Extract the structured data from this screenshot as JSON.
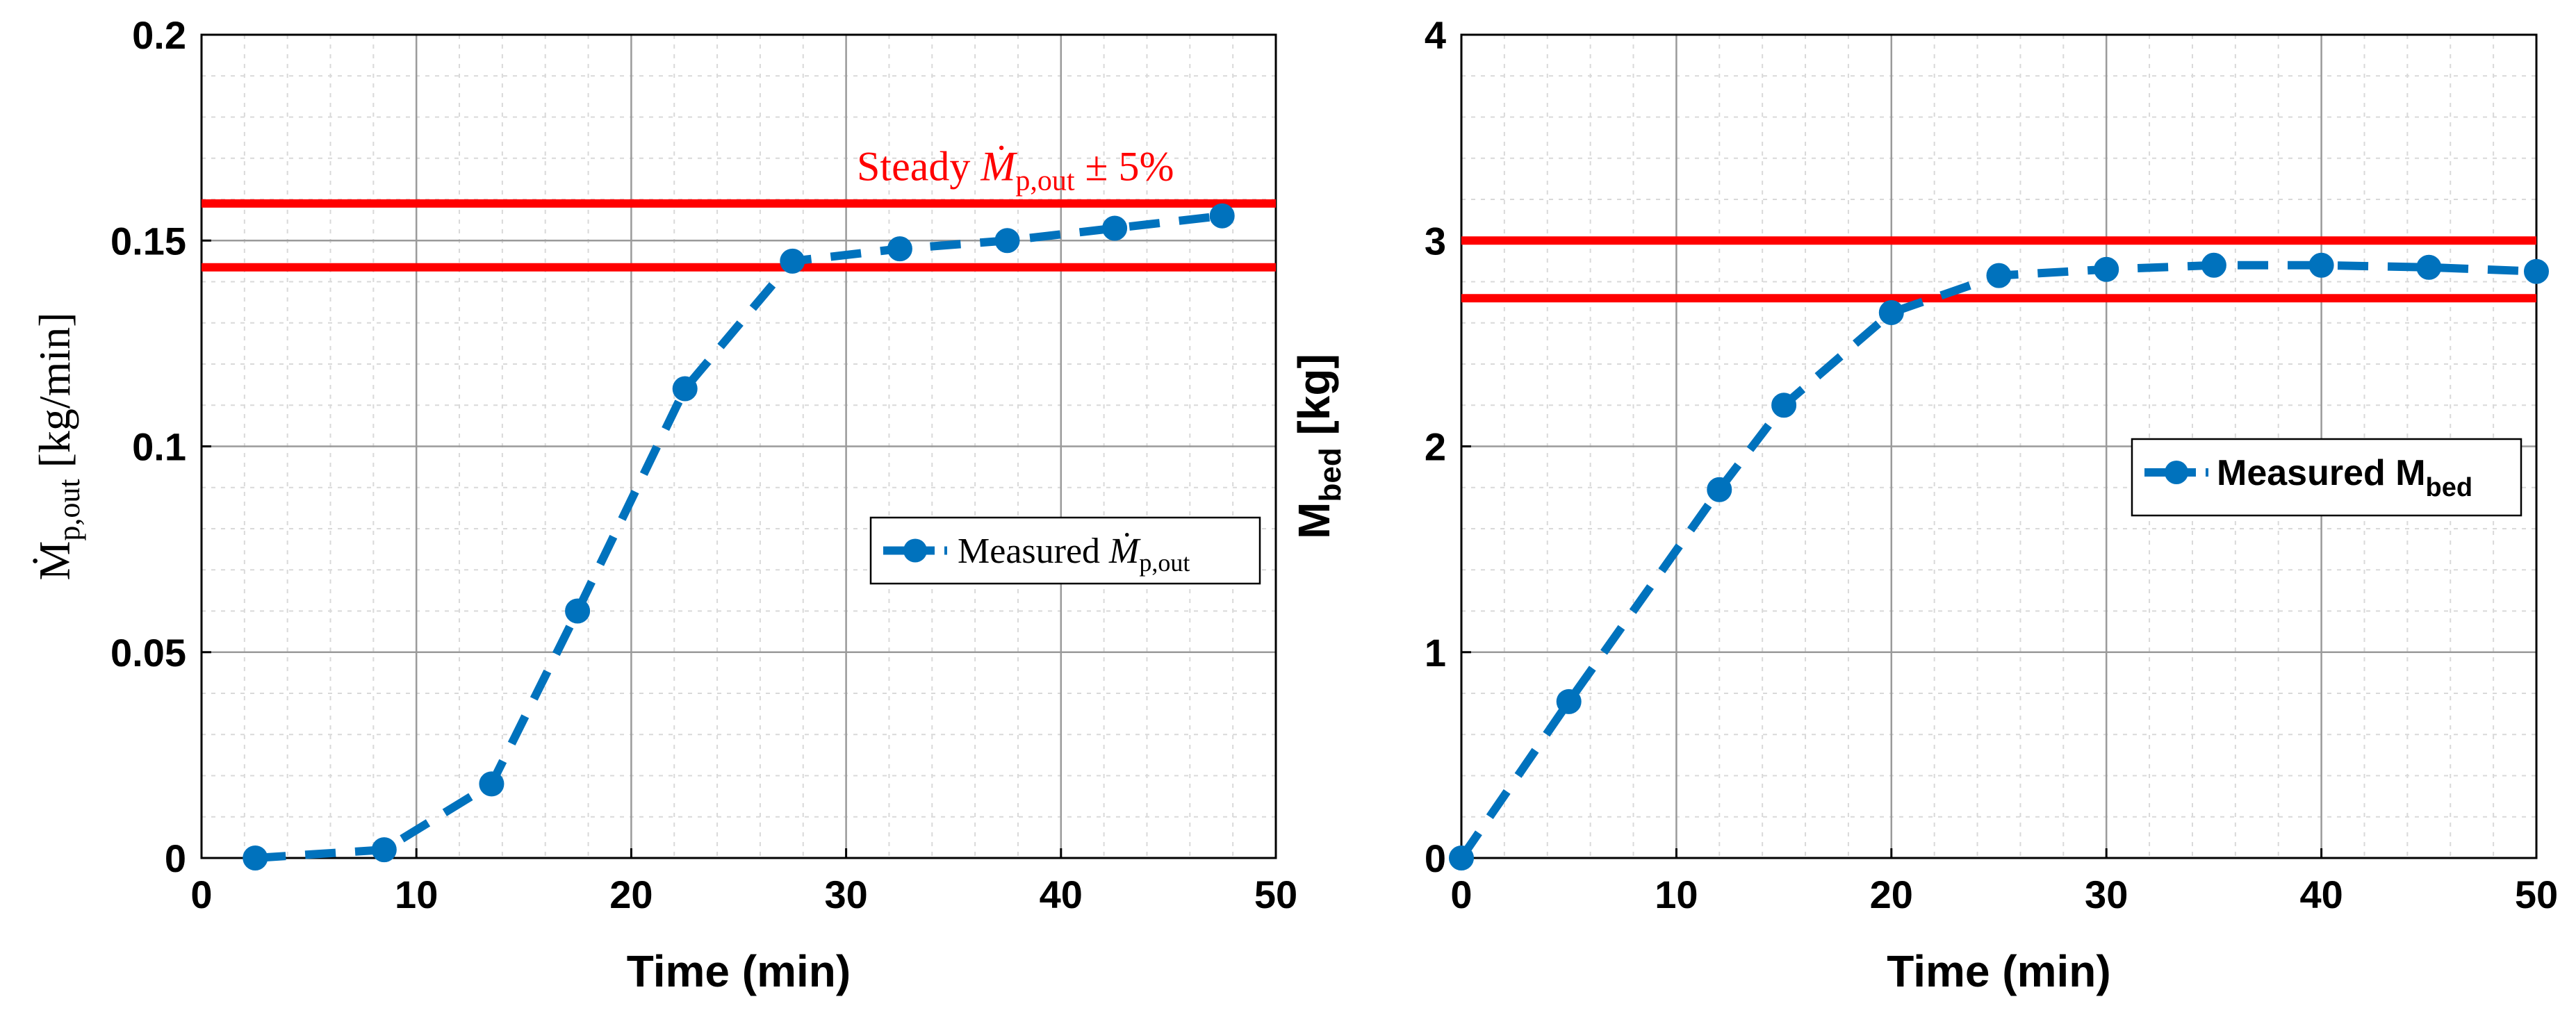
{
  "colors": {
    "series": "#0072BD",
    "threshold": "#FF0000",
    "grid_major": "#9a9a9a",
    "grid_minor": "#d9d9d9",
    "axis": "#000000"
  },
  "chart_data": [
    {
      "type": "line",
      "xlabel": "Time (min)",
      "ylabel": "Ṁ",
      "ylabel_sub": "p,out",
      "ylabel_units": " [kg/min]",
      "xlim": [
        0,
        50
      ],
      "ylim": [
        0,
        0.2
      ],
      "xticks": [
        0,
        10,
        20,
        30,
        40,
        50
      ],
      "yticks": [
        0,
        0.05,
        0.1,
        0.15,
        0.2
      ],
      "xtick_labels": [
        "0",
        "10",
        "20",
        "30",
        "40",
        "50"
      ],
      "ytick_labels": [
        "0",
        "0.05",
        "0.1",
        "0.15",
        "0.2"
      ],
      "grid": true,
      "minor_grid": true,
      "series": [
        {
          "name": "Measured",
          "legend_label": "Measured ",
          "legend_symbol": "Ṁ",
          "legend_sub": "p,out",
          "style": "dashed-markers",
          "x": [
            2.5,
            8.5,
            13.5,
            17.5,
            22.5,
            27.5,
            32.5,
            37.5,
            42.5,
            47.5
          ],
          "y": [
            0.0,
            0.002,
            0.018,
            0.06,
            0.114,
            0.145,
            0.148,
            0.15,
            0.153,
            0.156
          ]
        }
      ],
      "hlines": [
        0.159,
        0.1435
      ],
      "annotation": {
        "prefix": "Steady ",
        "symbol": "Ṁ",
        "sub": "p,out",
        "suffix": " ± 5%",
        "x": 30.5,
        "y": 0.168
      },
      "legend_location": "middle-right"
    },
    {
      "type": "line",
      "xlabel": "Time (min)",
      "ylabel": "M",
      "ylabel_sub": "bed",
      "ylabel_units": " [kg]",
      "xlim": [
        0,
        50
      ],
      "ylim": [
        0,
        4
      ],
      "xticks": [
        0,
        10,
        20,
        30,
        40,
        50
      ],
      "yticks": [
        0,
        1,
        2,
        3,
        4
      ],
      "xtick_labels": [
        "0",
        "10",
        "20",
        "30",
        "40",
        "50"
      ],
      "ytick_labels": [
        "0",
        "1",
        "2",
        "3",
        "4"
      ],
      "grid": true,
      "minor_grid": true,
      "series": [
        {
          "name": "Measured",
          "legend_label": "Measured M",
          "legend_sub": "bed",
          "style": "dashed-markers",
          "x": [
            0,
            5,
            12,
            15,
            20,
            25,
            30,
            35,
            40,
            45,
            50
          ],
          "y": [
            0.0,
            0.76,
            1.79,
            2.2,
            2.65,
            2.83,
            2.86,
            2.88,
            2.88,
            2.87,
            2.85
          ]
        }
      ],
      "hlines": [
        3.0,
        2.72
      ],
      "legend_location": "upper-right"
    }
  ]
}
